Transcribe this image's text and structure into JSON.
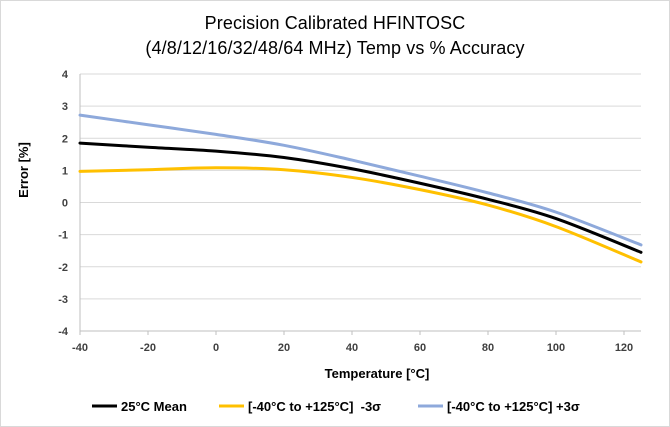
{
  "chart_data": {
    "type": "line",
    "title": "Precision Calibrated HFINTOSC",
    "subtitle": "(4/8/12/16/32/48/64 MHz) Temp vs % Accuracy",
    "xlabel": "Temperature [°C]",
    "ylabel": "Error [%]",
    "xlim": [
      -40,
      125
    ],
    "ylim": [
      -4,
      4
    ],
    "xticks": [
      -40,
      -20,
      0,
      20,
      40,
      60,
      80,
      100,
      120
    ],
    "yticks": [
      -4,
      -3,
      -2,
      -1,
      0,
      1,
      2,
      3,
      4
    ],
    "grid": {
      "horizontal": true,
      "vertical": false
    },
    "legend_position": "bottom",
    "series": [
      {
        "name": "25°C Mean",
        "color": "#000000",
        "x": [
          -40,
          -20,
          0,
          20,
          40,
          60,
          80,
          100,
          125
        ],
        "y": [
          1.85,
          1.72,
          1.6,
          1.4,
          1.05,
          0.6,
          0.1,
          -0.5,
          -1.55
        ]
      },
      {
        "name": "[-40°C to +125°C]  -3σ",
        "color": "#FFC000",
        "x": [
          -40,
          -20,
          0,
          20,
          40,
          60,
          80,
          100,
          125
        ],
        "y": [
          0.97,
          1.02,
          1.08,
          1.02,
          0.78,
          0.4,
          -0.08,
          -0.75,
          -1.85
        ]
      },
      {
        "name": "[-40°C to +125°C] +3σ",
        "color": "#8EA9DB",
        "x": [
          -40,
          -20,
          0,
          20,
          40,
          60,
          80,
          100,
          125
        ],
        "y": [
          2.72,
          2.42,
          2.12,
          1.78,
          1.32,
          0.82,
          0.3,
          -0.3,
          -1.32
        ]
      }
    ]
  }
}
